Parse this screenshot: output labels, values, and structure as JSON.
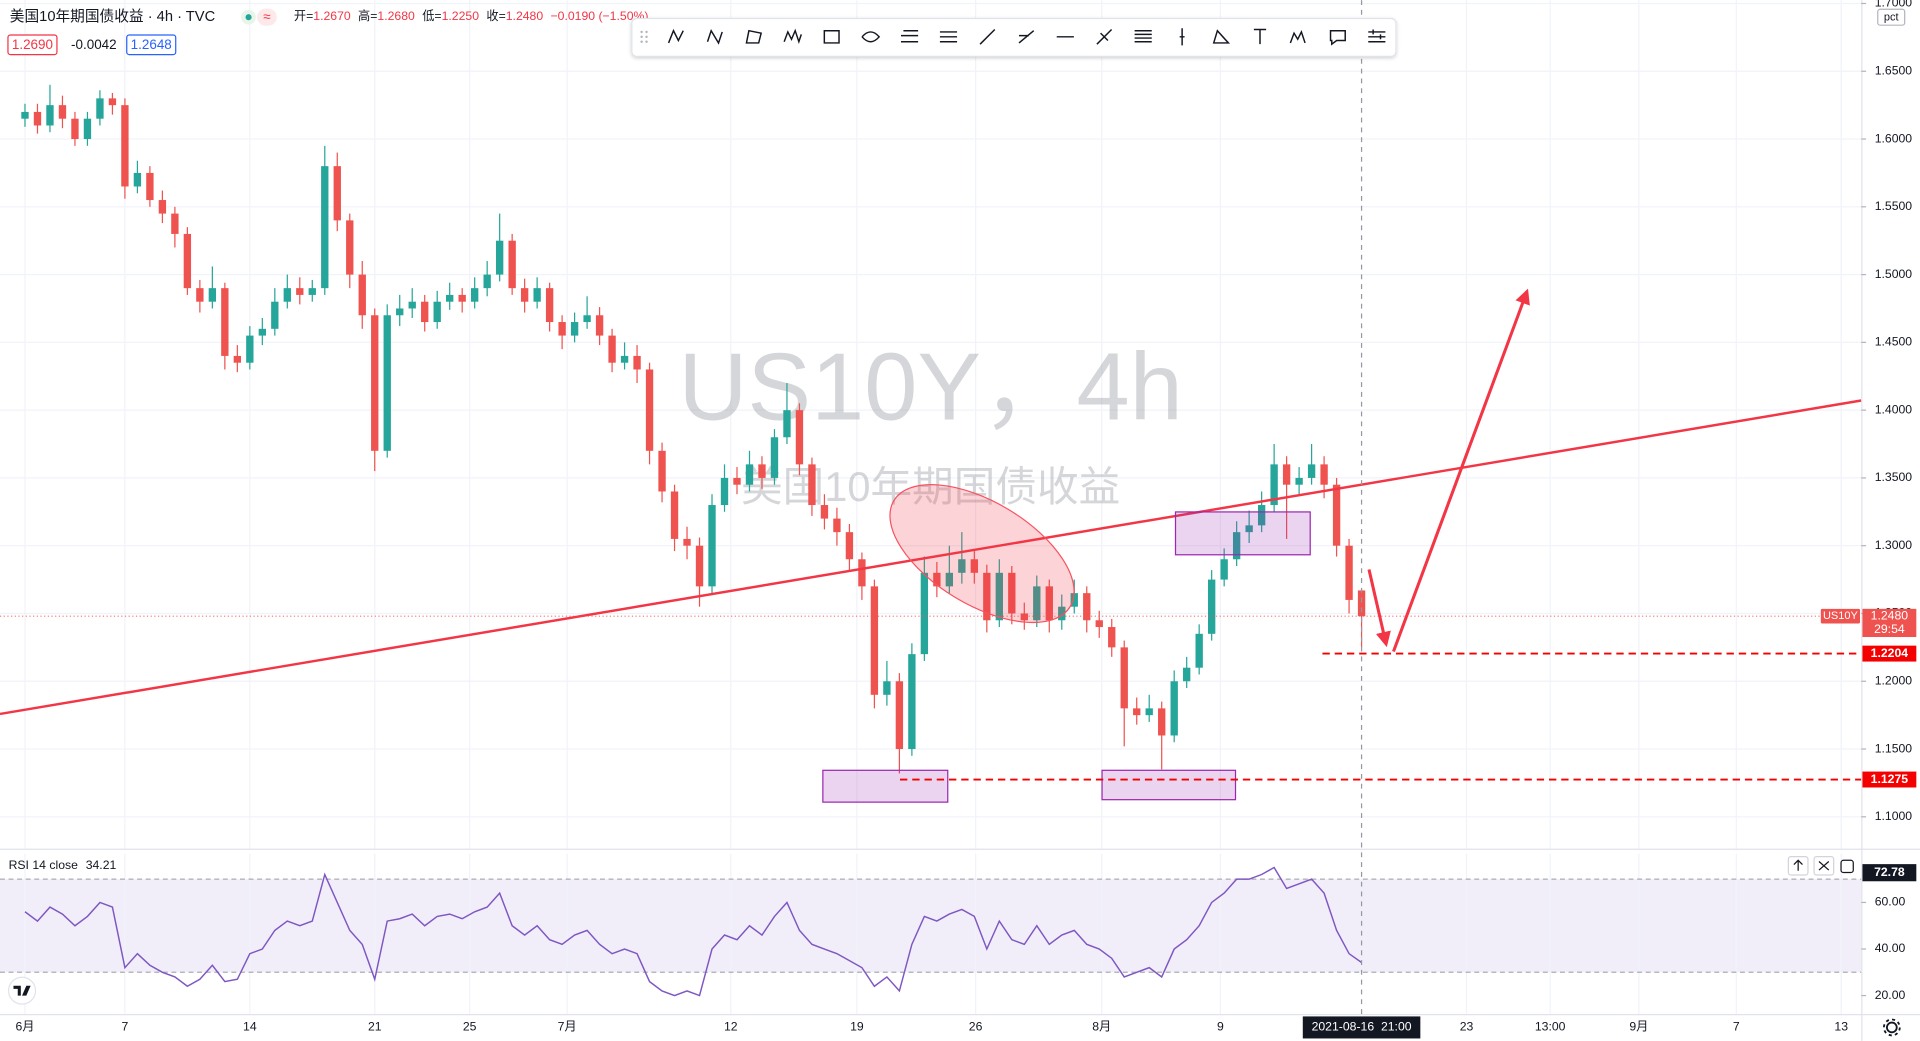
{
  "header": {
    "symbol_title": "美国10年期国债收益 · 4h · TVC",
    "indicator": "≈",
    "ohlc": [
      {
        "label": "开=",
        "value": "1.2670"
      },
      {
        "label": "高=",
        "value": "1.2680"
      },
      {
        "label": "低=",
        "value": "1.2250"
      },
      {
        "label": "收=",
        "value": "1.2480"
      }
    ],
    "change": "−0.0190 (−1.50%)",
    "sell": "1.2690",
    "spread": "-0.0042",
    "buy": "1.2648"
  },
  "chart_data": [
    {
      "type": "candlestick",
      "title": "US10Y，4h",
      "subtitle": "美国10年期国债收益",
      "unit": "pct",
      "up_color": "#26a69a",
      "down_color": "#ef5350",
      "grid": true,
      "xlim": [
        -2,
        147
      ],
      "ylim": [
        1.0765,
        1.7025
      ],
      "yticks": [
        {
          "value": 1.1,
          "label": "1.1000"
        },
        {
          "value": 1.15,
          "label": "1.1500"
        },
        {
          "value": 1.2,
          "label": "1.2000"
        },
        {
          "value": 1.25,
          "label": "1.2500"
        },
        {
          "value": 1.3,
          "label": "1.3000"
        },
        {
          "value": 1.35,
          "label": "1.3500"
        },
        {
          "value": 1.4,
          "label": "1.4000"
        },
        {
          "value": 1.45,
          "label": "1.4500"
        },
        {
          "value": 1.5,
          "label": "1.5000"
        },
        {
          "value": 1.55,
          "label": "1.5500"
        },
        {
          "value": 1.6,
          "label": "1.6000"
        },
        {
          "value": 1.65,
          "label": "1.6500"
        },
        {
          "value": 1.7,
          "label": "1.7000"
        }
      ],
      "open": [
        1.615,
        1.62,
        1.61,
        1.625,
        1.615,
        1.6,
        1.615,
        1.63,
        1.625,
        1.565,
        1.575,
        1.555,
        1.545,
        1.53,
        1.49,
        1.48,
        1.49,
        1.44,
        1.435,
        1.455,
        1.46,
        1.48,
        1.49,
        1.485,
        1.49,
        1.58,
        1.54,
        1.5,
        1.47,
        1.37,
        1.47,
        1.475,
        1.48,
        1.465,
        1.48,
        1.485,
        1.48,
        1.49,
        1.5,
        1.525,
        1.49,
        1.48,
        1.49,
        1.465,
        1.455,
        1.465,
        1.47,
        1.455,
        1.435,
        1.44,
        1.43,
        1.37,
        1.34,
        1.305,
        1.3,
        1.27,
        1.33,
        1.35,
        1.345,
        1.36,
        1.35,
        1.38,
        1.4,
        1.36,
        1.33,
        1.32,
        1.31,
        1.29,
        1.27,
        1.19,
        1.2,
        1.15,
        1.22,
        1.28,
        1.27,
        1.28,
        1.29,
        1.28,
        1.245,
        1.28,
        1.25,
        1.245,
        1.27,
        1.245,
        1.255,
        1.265,
        1.245,
        1.24,
        1.225,
        1.18,
        1.175,
        1.18,
        1.16,
        1.2,
        1.21,
        1.235,
        1.275,
        1.29,
        1.31,
        1.315,
        1.33,
        1.36,
        1.345,
        1.35,
        1.36,
        1.345,
        1.3,
        1.267
      ],
      "high": [
        1.626,
        1.626,
        1.64,
        1.632,
        1.62,
        1.62,
        1.636,
        1.634,
        1.63,
        1.584,
        1.58,
        1.562,
        1.55,
        1.535,
        1.496,
        1.506,
        1.494,
        1.448,
        1.462,
        1.468,
        1.49,
        1.5,
        1.498,
        1.496,
        1.595,
        1.59,
        1.545,
        1.51,
        1.475,
        1.478,
        1.485,
        1.49,
        1.485,
        1.488,
        1.494,
        1.49,
        1.498,
        1.51,
        1.545,
        1.53,
        1.497,
        1.498,
        1.494,
        1.47,
        1.472,
        1.484,
        1.476,
        1.46,
        1.45,
        1.448,
        1.435,
        1.376,
        1.345,
        1.314,
        1.306,
        1.338,
        1.36,
        1.358,
        1.37,
        1.366,
        1.386,
        1.42,
        1.405,
        1.365,
        1.338,
        1.328,
        1.316,
        1.295,
        1.275,
        1.215,
        1.206,
        1.228,
        1.292,
        1.288,
        1.3,
        1.31,
        1.296,
        1.286,
        1.29,
        1.285,
        1.258,
        1.278,
        1.275,
        1.264,
        1.275,
        1.27,
        1.252,
        1.246,
        1.23,
        1.188,
        1.19,
        1.185,
        1.208,
        1.218,
        1.242,
        1.282,
        1.298,
        1.318,
        1.326,
        1.34,
        1.375,
        1.366,
        1.358,
        1.375,
        1.366,
        1.35,
        1.305,
        1.268
      ],
      "low": [
        1.609,
        1.604,
        1.605,
        1.608,
        1.595,
        1.595,
        1.61,
        1.618,
        1.556,
        1.56,
        1.55,
        1.538,
        1.52,
        1.485,
        1.472,
        1.475,
        1.43,
        1.428,
        1.43,
        1.448,
        1.455,
        1.475,
        1.478,
        1.48,
        1.485,
        1.532,
        1.49,
        1.46,
        1.355,
        1.365,
        1.462,
        1.468,
        1.458,
        1.46,
        1.474,
        1.472,
        1.475,
        1.484,
        1.495,
        1.485,
        1.472,
        1.475,
        1.458,
        1.445,
        1.45,
        1.46,
        1.448,
        1.428,
        1.43,
        1.42,
        1.36,
        1.332,
        1.296,
        1.29,
        1.255,
        1.265,
        1.325,
        1.338,
        1.34,
        1.342,
        1.345,
        1.375,
        1.352,
        1.322,
        1.312,
        1.3,
        1.282,
        1.26,
        1.18,
        1.182,
        1.132,
        1.145,
        1.215,
        1.262,
        1.265,
        1.272,
        1.272,
        1.236,
        1.24,
        1.242,
        1.238,
        1.24,
        1.236,
        1.238,
        1.25,
        1.236,
        1.232,
        1.218,
        1.152,
        1.168,
        1.17,
        1.135,
        1.155,
        1.195,
        1.205,
        1.23,
        1.27,
        1.285,
        1.302,
        1.31,
        1.325,
        1.305,
        1.338,
        1.345,
        1.335,
        1.292,
        1.25,
        1.225
      ],
      "close": [
        1.62,
        1.61,
        1.625,
        1.615,
        1.6,
        1.615,
        1.63,
        1.625,
        1.565,
        1.575,
        1.555,
        1.545,
        1.53,
        1.49,
        1.48,
        1.49,
        1.44,
        1.435,
        1.455,
        1.46,
        1.48,
        1.49,
        1.485,
        1.49,
        1.58,
        1.54,
        1.5,
        1.47,
        1.37,
        1.47,
        1.475,
        1.48,
        1.465,
        1.48,
        1.485,
        1.48,
        1.49,
        1.5,
        1.525,
        1.49,
        1.48,
        1.49,
        1.465,
        1.455,
        1.465,
        1.47,
        1.455,
        1.435,
        1.44,
        1.43,
        1.37,
        1.34,
        1.305,
        1.3,
        1.27,
        1.33,
        1.35,
        1.345,
        1.36,
        1.35,
        1.38,
        1.4,
        1.36,
        1.33,
        1.32,
        1.31,
        1.29,
        1.27,
        1.19,
        1.2,
        1.15,
        1.22,
        1.28,
        1.27,
        1.28,
        1.29,
        1.28,
        1.245,
        1.28,
        1.25,
        1.245,
        1.27,
        1.245,
        1.255,
        1.265,
        1.245,
        1.24,
        1.225,
        1.18,
        1.175,
        1.18,
        1.16,
        1.2,
        1.21,
        1.235,
        1.275,
        1.29,
        1.31,
        1.315,
        1.33,
        1.36,
        1.345,
        1.35,
        1.36,
        1.345,
        1.3,
        1.26,
        1.248
      ],
      "symbol_tag": "US10Y",
      "countdown": "29:54",
      "price_labels": [
        {
          "value": 1.248,
          "label": "1.2480",
          "color": "#ef5350"
        },
        {
          "value": 1.2204,
          "label": "1.2204",
          "color": "#f50000"
        },
        {
          "value": 1.1275,
          "label": "1.1275",
          "color": "#f50000"
        }
      ]
    },
    {
      "type": "line",
      "title": "RSI 14 close",
      "color": "#7e57c2",
      "band_color": "#7e57c2",
      "xlim": [
        -2,
        147
      ],
      "ylim": [
        12.1,
        81
      ],
      "upper_band": 70,
      "lower_band": 30,
      "level_label": 72.78,
      "yticks": [
        {
          "value": 20,
          "label": "20.00"
        },
        {
          "value": 40,
          "label": "40.00"
        },
        {
          "value": 60,
          "label": "60.00"
        }
      ],
      "values": [
        56,
        52,
        58,
        55,
        50,
        54,
        60,
        58,
        32,
        38,
        33,
        30,
        28,
        24,
        27,
        33,
        26,
        27,
        38,
        40,
        48,
        52,
        50,
        52,
        72,
        60,
        48,
        42,
        27,
        52,
        53,
        55,
        50,
        54,
        55,
        53,
        56,
        58,
        64,
        50,
        46,
        50,
        44,
        42,
        46,
        48,
        42,
        38,
        40,
        38,
        26,
        22,
        20,
        22,
        20,
        40,
        46,
        44,
        50,
        46,
        54,
        60,
        48,
        42,
        40,
        38,
        35,
        32,
        24,
        28,
        22,
        42,
        54,
        52,
        55,
        57,
        54,
        40,
        52,
        44,
        42,
        50,
        42,
        46,
        48,
        42,
        40,
        36,
        28,
        30,
        32,
        28,
        40,
        44,
        50,
        60,
        64,
        70,
        70,
        72,
        75,
        66,
        68,
        70,
        64,
        48,
        38,
        34.21
      ],
      "xticks": [
        {
          "value": 0,
          "label": "6月"
        },
        {
          "value": 8,
          "label": "7"
        },
        {
          "value": 18,
          "label": "14"
        },
        {
          "value": 28,
          "label": "21"
        },
        {
          "value": 35.6,
          "label": "25"
        },
        {
          "value": 43.4,
          "label": "7月"
        },
        {
          "value": 56.5,
          "label": "12"
        },
        {
          "value": 66.6,
          "label": "19"
        },
        {
          "value": 76.1,
          "label": "26"
        },
        {
          "value": 86.2,
          "label": "8月"
        },
        {
          "value": 95.7,
          "label": "9"
        },
        {
          "value": 115.4,
          "label": "23"
        },
        {
          "value": 122.1,
          "label": "13:00"
        },
        {
          "value": 129.2,
          "label": "9月"
        },
        {
          "value": 137,
          "label": "7"
        },
        {
          "value": 145.4,
          "label": "13"
        }
      ],
      "crosshair": {
        "value": 107,
        "label": "2021-08-16  21:00"
      }
    }
  ]
}
